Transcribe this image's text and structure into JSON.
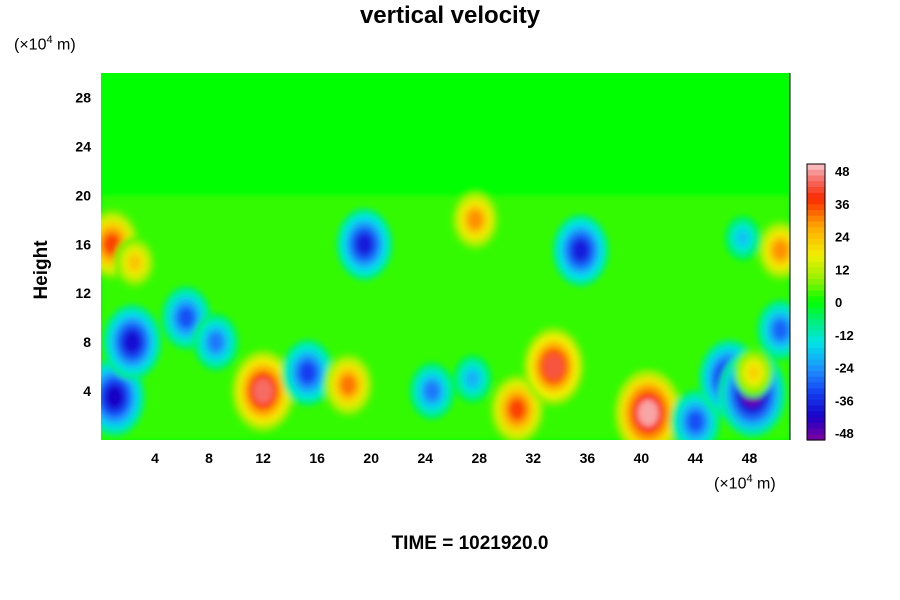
{
  "chart_data": {
    "type": "heatmap",
    "title": "vertical velocity",
    "ylabel": "Height",
    "y_unit_prefix": "(×10",
    "y_unit_exp": "4",
    "y_unit_suffix": " m)",
    "x_unit_prefix": "(×10",
    "x_unit_exp": "4",
    "x_unit_suffix": " m)",
    "xlim": [
      0,
      51
    ],
    "ylim": [
      0,
      30
    ],
    "x_ticks": [
      4,
      8,
      12,
      16,
      20,
      24,
      28,
      32,
      36,
      40,
      44,
      48
    ],
    "y_ticks": [
      4,
      8,
      12,
      16,
      20,
      24,
      28
    ],
    "colorbar": {
      "min": -48,
      "max": 48,
      "labels": [
        48,
        36,
        24,
        12,
        0,
        -12,
        -24,
        -36,
        -48
      ]
    },
    "features": [
      {
        "x": 0.8,
        "y": 16,
        "value": 34
      },
      {
        "x": 2.5,
        "y": 14.5,
        "value": 22
      },
      {
        "x": 1,
        "y": 3.5,
        "value": -40
      },
      {
        "x": 2.3,
        "y": 8,
        "value": -38
      },
      {
        "x": 6.3,
        "y": 10,
        "value": -30
      },
      {
        "x": 8.5,
        "y": 8,
        "value": -26
      },
      {
        "x": 12,
        "y": 4,
        "value": 42
      },
      {
        "x": 15.3,
        "y": 5.5,
        "value": -32
      },
      {
        "x": 18.3,
        "y": 4.5,
        "value": 30
      },
      {
        "x": 24.5,
        "y": 4,
        "value": -26
      },
      {
        "x": 27.5,
        "y": 5,
        "value": -20
      },
      {
        "x": 19.5,
        "y": 16,
        "value": -36
      },
      {
        "x": 30.8,
        "y": 2.5,
        "value": 34
      },
      {
        "x": 33.5,
        "y": 6,
        "value": 40
      },
      {
        "x": 35.5,
        "y": 15.5,
        "value": -36
      },
      {
        "x": 40.5,
        "y": 2.2,
        "value": 46
      },
      {
        "x": 44,
        "y": 1.5,
        "value": -30
      },
      {
        "x": 46.5,
        "y": 5,
        "value": -40
      },
      {
        "x": 48.2,
        "y": 3.8,
        "value": -46
      },
      {
        "x": 48.3,
        "y": 5.5,
        "value": 20
      },
      {
        "x": 50.3,
        "y": 15.5,
        "value": 28
      },
      {
        "x": 50.3,
        "y": 9,
        "value": -28
      },
      {
        "x": 27.7,
        "y": 18,
        "value": 28
      },
      {
        "x": 47.5,
        "y": 16.5,
        "value": -18
      }
    ]
  },
  "time_label": "TIME = 1021920.0"
}
